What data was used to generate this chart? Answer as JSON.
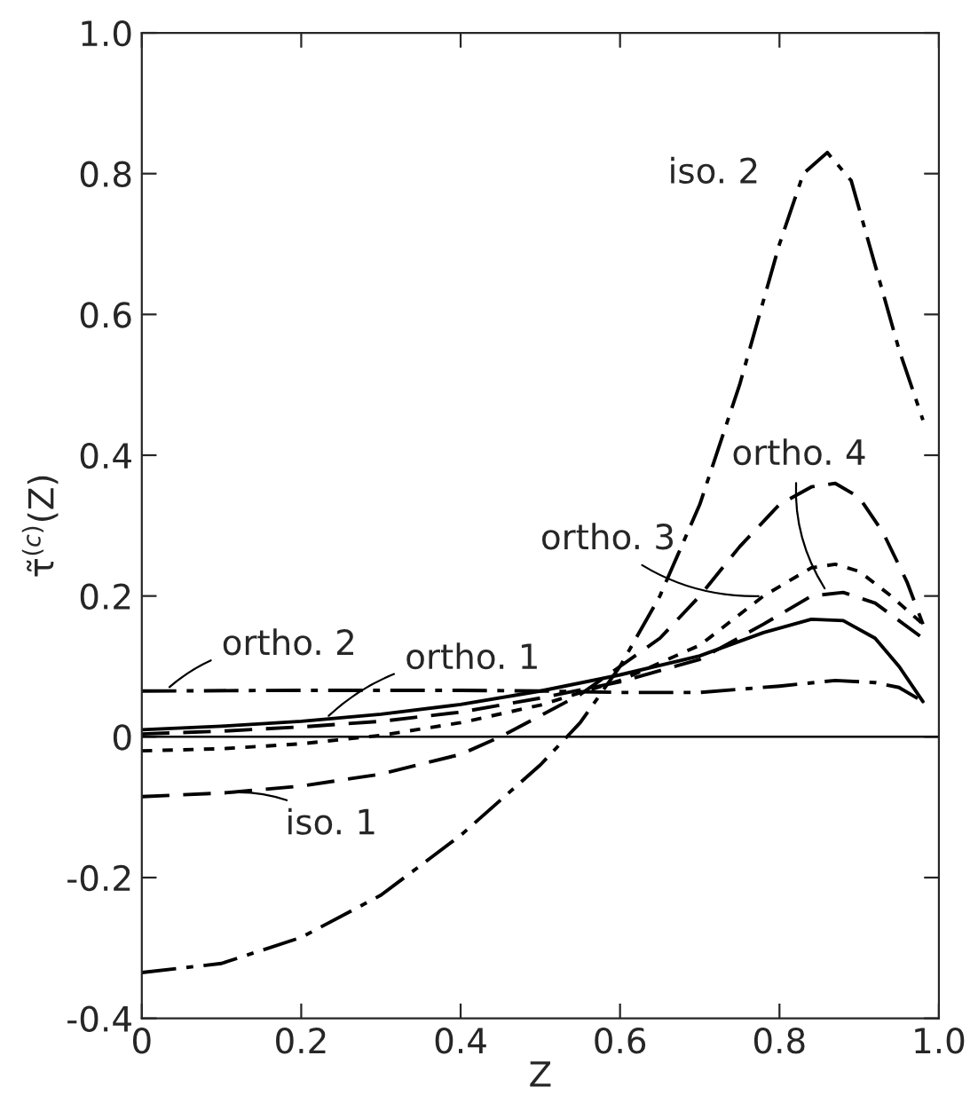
{
  "chart_data": {
    "type": "line",
    "xlabel": "Z",
    "ylabel": "τ̃$^{(c)}$(Z)",
    "xlim": [
      0,
      1.0
    ],
    "ylim": [
      -0.4,
      1.0
    ],
    "xticks": [
      0,
      0.2,
      0.4,
      0.6,
      0.8,
      {
        "value": 1,
        "label": "1.0"
      }
    ],
    "yticks": [
      -0.4,
      -0.2,
      0,
      0.2,
      0.4,
      0.6,
      0.8,
      {
        "value": 1,
        "label": "1.0"
      }
    ],
    "grid": false,
    "legend": false,
    "marker": "none",
    "ref_lines": [
      {
        "axis": "y",
        "value": 0,
        "color": "#000000",
        "line_style": "solid"
      }
    ],
    "series": [
      {
        "color": "#000000",
        "line_style": "solid",
        "x": [
          0,
          0.1,
          0.2,
          0.3,
          0.4,
          0.5,
          0.6,
          0.7,
          0.78,
          0.84,
          0.88,
          0.92,
          0.95,
          0.98
        ],
        "values": [
          0.01,
          0.015,
          0.022,
          0.032,
          0.046,
          0.065,
          0.088,
          0.115,
          0.148,
          0.167,
          0.165,
          0.14,
          0.1,
          0.05
        ]
      },
      {
        "color": "#000000",
        "line_style": "dashdot",
        "x": [
          0,
          0.2,
          0.4,
          0.5,
          0.6,
          0.7,
          0.8,
          0.87,
          0.92,
          0.95,
          0.98
        ],
        "values": [
          0.065,
          0.066,
          0.066,
          0.065,
          0.063,
          0.063,
          0.072,
          0.08,
          0.077,
          0.07,
          0.05
        ]
      },
      {
        "color": "#000000",
        "line_style": "dashed",
        "x": [
          0,
          0.1,
          0.2,
          0.3,
          0.4,
          0.45,
          0.5,
          0.55,
          0.6,
          0.65,
          0.7,
          0.75,
          0.8,
          0.84,
          0.87,
          0.9,
          0.93,
          0.96,
          0.98
        ],
        "values": [
          -0.085,
          -0.08,
          -0.07,
          -0.053,
          -0.025,
          0.0,
          0.03,
          0.06,
          0.1,
          0.14,
          0.2,
          0.27,
          0.33,
          0.355,
          0.36,
          0.34,
          0.29,
          0.22,
          0.16
        ]
      },
      {
        "color": "#000000",
        "line_style": "dotted",
        "x": [
          0,
          0.1,
          0.2,
          0.3,
          0.4,
          0.5,
          0.6,
          0.7,
          0.78,
          0.84,
          0.87,
          0.9,
          0.94,
          0.98
        ],
        "values": [
          -0.02,
          -0.017,
          -0.01,
          0.002,
          0.02,
          0.045,
          0.08,
          0.13,
          0.2,
          0.24,
          0.245,
          0.235,
          0.2,
          0.16
        ]
      },
      {
        "color": "#000000",
        "line_style": "dashed",
        "x": [
          0,
          0.1,
          0.2,
          0.3,
          0.4,
          0.5,
          0.6,
          0.7,
          0.78,
          0.84,
          0.88,
          0.92,
          0.95,
          0.98
        ],
        "values": [
          0.004,
          0.008,
          0.014,
          0.022,
          0.035,
          0.055,
          0.078,
          0.11,
          0.16,
          0.2,
          0.205,
          0.19,
          0.165,
          0.14
        ]
      },
      {
        "color": "#000000",
        "line_style": "dashdot",
        "x": [
          0,
          0.1,
          0.2,
          0.3,
          0.4,
          0.5,
          0.55,
          0.6,
          0.65,
          0.7,
          0.75,
          0.8,
          0.83,
          0.86,
          0.89,
          0.92,
          0.95,
          0.98
        ],
        "values": [
          -0.335,
          -0.322,
          -0.285,
          -0.225,
          -0.14,
          -0.04,
          0.02,
          0.1,
          0.2,
          0.33,
          0.5,
          0.7,
          0.8,
          0.83,
          0.79,
          0.67,
          0.55,
          0.45
        ]
      }
    ],
    "annotations": [
      {
        "text": "ortho. 2",
        "x": 0.03,
        "y": 0.066
      },
      {
        "text": "ortho. 1",
        "x": 0.23,
        "y": 0.025
      },
      {
        "text": "iso. 1",
        "x": 0.1,
        "y": -0.08
      },
      {
        "text": "iso. 2",
        "x": 0.8,
        "y": 0.7
      },
      {
        "text": "ortho. 3",
        "x": 0.78,
        "y": 0.2
      },
      {
        "text": "ortho. 4",
        "x": 0.86,
        "y": 0.205
      }
    ]
  }
}
